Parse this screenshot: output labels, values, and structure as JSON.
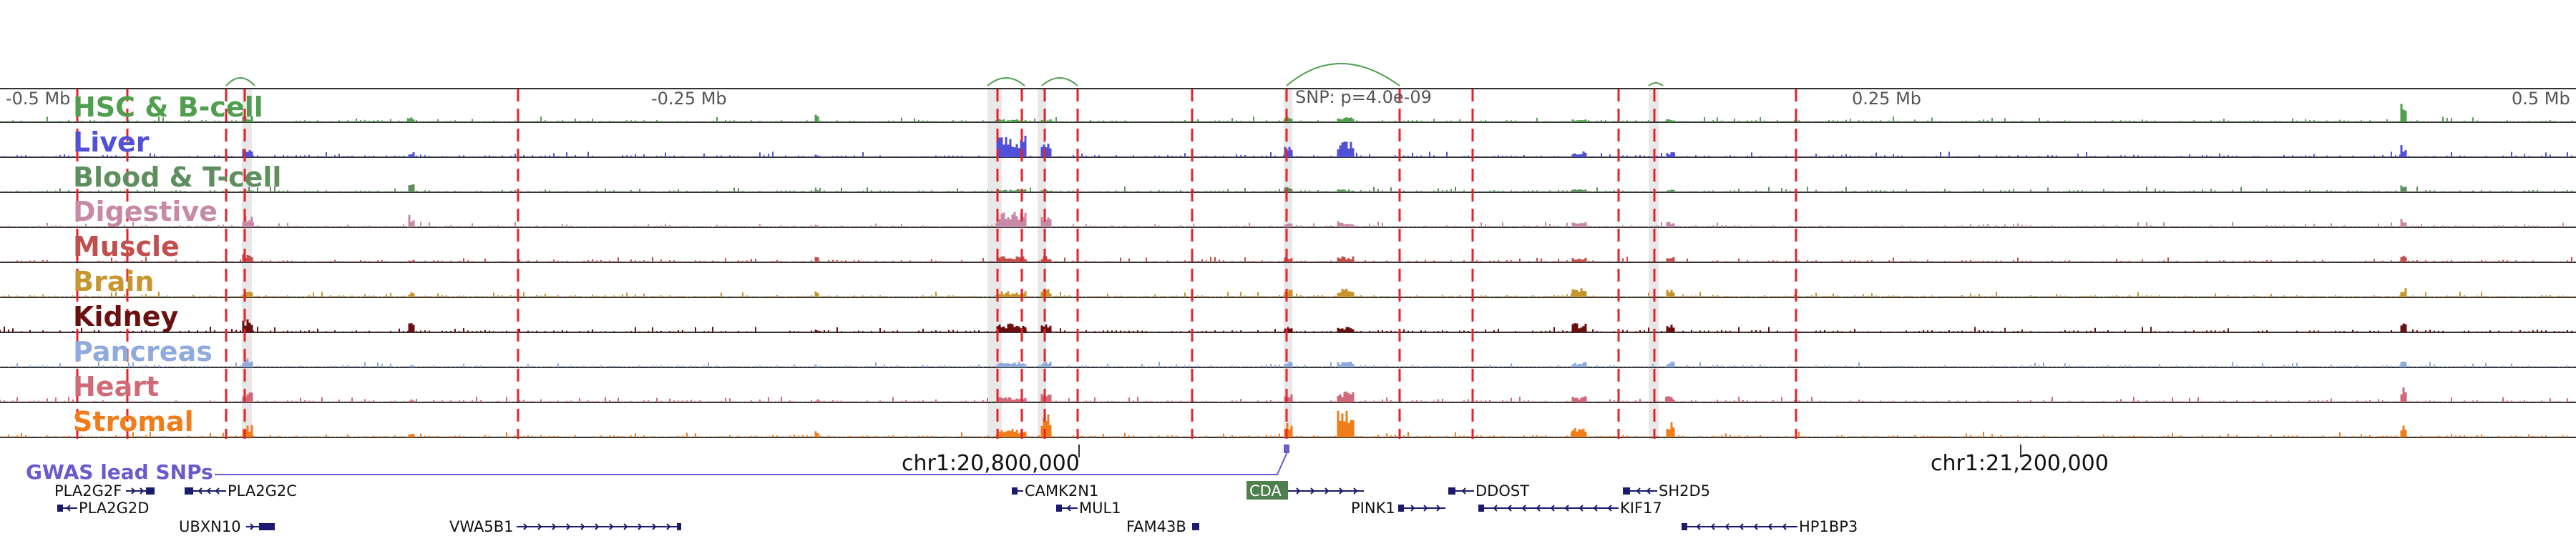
{
  "ruler": {
    "left_end": "-0.5 Mb",
    "left_mid": "-0.25 Mb",
    "right_mid": "0.25 Mb",
    "right_end": "0.5 Mb",
    "snp": "SNP: p=4.0e-09"
  },
  "tracks": [
    {
      "label": "HSC & B-cell",
      "color": "#4f9f4f"
    },
    {
      "label": "Liver",
      "color": "#5050d8"
    },
    {
      "label": "Blood & T-cell",
      "color": "#5f8f5f"
    },
    {
      "label": "Digestive",
      "color": "#c78aa6"
    },
    {
      "label": "Muscle",
      "color": "#c0504d"
    },
    {
      "label": "Brain",
      "color": "#c8962e"
    },
    {
      "label": "Kidney",
      "color": "#6a1010"
    },
    {
      "label": "Pancreas",
      "color": "#8faadc"
    },
    {
      "label": "Heart",
      "color": "#d06a78"
    },
    {
      "label": "Stromal",
      "color": "#f07c1a"
    }
  ],
  "gwas": {
    "label": "GWAS lead SNPs"
  },
  "coordinates": {
    "left": "chr1:20,800,000",
    "right": "chr1:21,200,000"
  },
  "genes": [
    {
      "name": "PLA2G2F"
    },
    {
      "name": "PLA2G2C"
    },
    {
      "name": "PLA2G2D"
    },
    {
      "name": "UBXN10"
    },
    {
      "name": "VWA5B1"
    },
    {
      "name": "CAMK2N1"
    },
    {
      "name": "MUL1"
    },
    {
      "name": "FAM43B"
    },
    {
      "name": "CDA"
    },
    {
      "name": "PINK1"
    },
    {
      "name": "DDOST"
    },
    {
      "name": "KIF17"
    },
    {
      "name": "SH2D5"
    },
    {
      "name": "HP1BP3"
    }
  ],
  "colors": {
    "peak_marker": "#e8202a",
    "highlight": "#d9d9d9",
    "loop": "#4f9f4f",
    "gene": "#1a1a6e",
    "cda_box": "#4f7f4f"
  }
}
